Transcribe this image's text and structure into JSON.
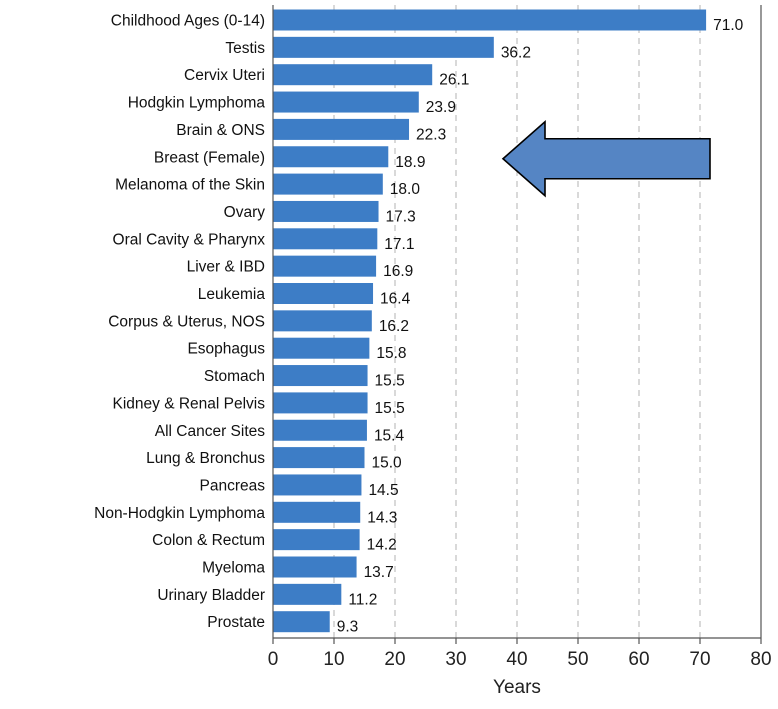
{
  "chart_data": {
    "type": "bar",
    "orientation": "horizontal",
    "categories": [
      "Childhood Ages (0-14)",
      "Testis",
      "Cervix Uteri",
      "Hodgkin Lymphoma",
      "Brain & ONS",
      "Breast (Female)",
      "Melanoma of the Skin",
      "Ovary",
      "Oral Cavity & Pharynx",
      "Liver & IBD",
      "Leukemia",
      "Corpus & Uterus, NOS",
      "Esophagus",
      "Stomach",
      "Kidney & Renal Pelvis",
      "All Cancer Sites",
      "Lung & Bronchus",
      "Pancreas",
      "Non-Hodgkin Lymphoma",
      "Colon & Rectum",
      "Myeloma",
      "Urinary Bladder",
      "Prostate"
    ],
    "values": [
      71.0,
      36.2,
      26.1,
      23.9,
      22.3,
      18.9,
      18.0,
      17.3,
      17.1,
      16.9,
      16.4,
      16.2,
      15.8,
      15.5,
      15.5,
      15.4,
      15.0,
      14.5,
      14.3,
      14.2,
      13.7,
      11.2,
      9.3
    ],
    "value_labels": [
      "71.0",
      "36.2",
      "26.1",
      "23.9",
      "22.3",
      "18.9",
      "18.0",
      "17.3",
      "17.1",
      "16.9",
      "16.4",
      "16.2",
      "15.8",
      "15.5",
      "15.5",
      "15.4",
      "15.0",
      "14.5",
      "14.3",
      "14.2",
      "13.7",
      "11.2",
      "9.3"
    ],
    "title": "",
    "xlabel": "Years",
    "ylabel": "",
    "xlim": [
      0,
      80
    ],
    "xticks": [
      0,
      10,
      20,
      30,
      40,
      50,
      60,
      70,
      80
    ],
    "xtick_labels": [
      "0",
      "10",
      "20",
      "30",
      "40",
      "50",
      "60",
      "70",
      "80"
    ],
    "gridlines": "vertical dashed",
    "highlight_arrow_category": "Breast (Female)",
    "colors": {
      "bar": "#3D7DC6",
      "arrow_fill": "#5585C4",
      "arrow_stroke": "#000000",
      "grid": "#b3b3b3",
      "axis": "#555555"
    }
  }
}
